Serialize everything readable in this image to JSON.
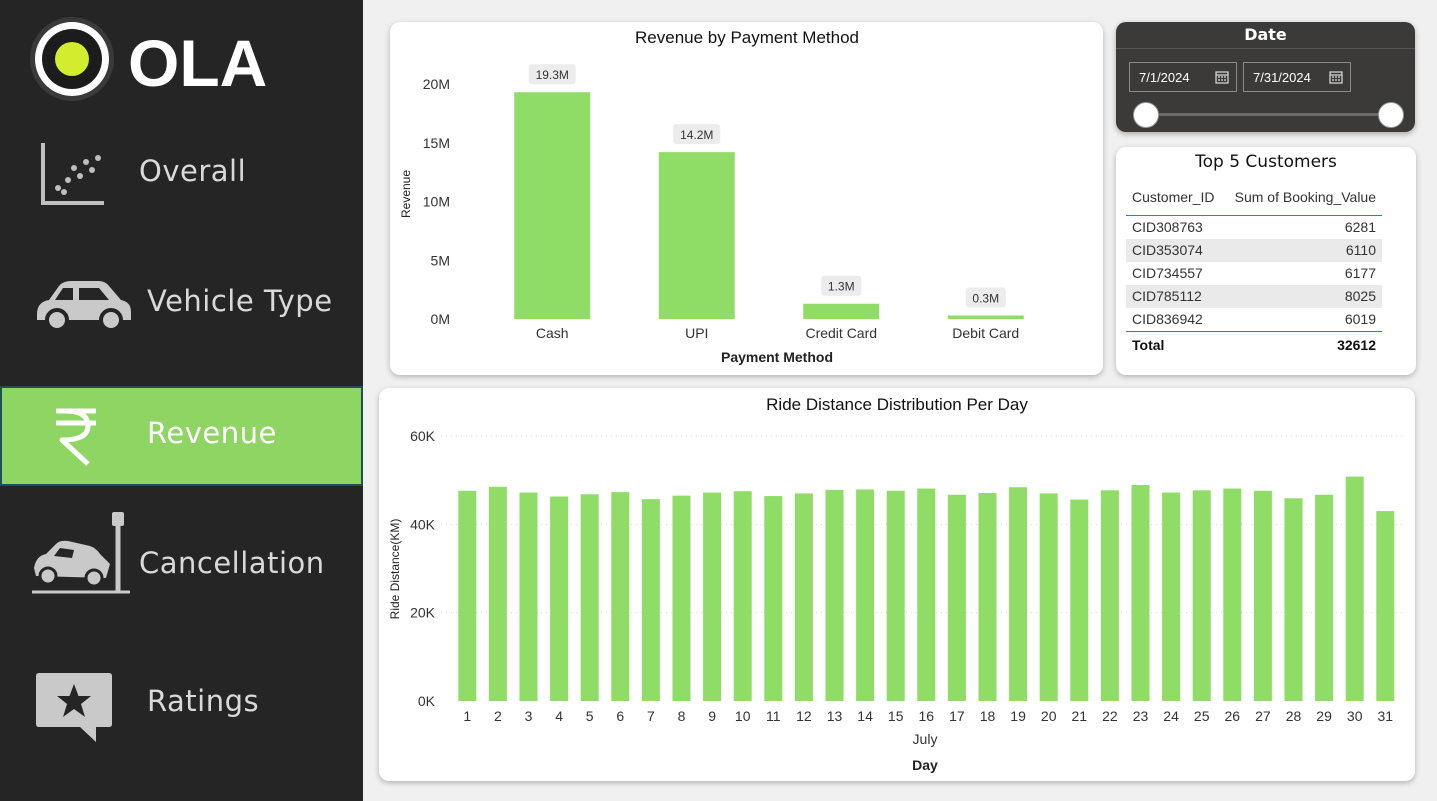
{
  "brand": {
    "name": "OLA"
  },
  "nav": [
    {
      "label": "Overall",
      "icon": "scatter-chart-icon",
      "active": false
    },
    {
      "label": "Vehicle Type",
      "icon": "car-icon",
      "active": false
    },
    {
      "label": "Revenue",
      "icon": "rupee-icon",
      "active": true
    },
    {
      "label": "Cancellation",
      "icon": "car-crash-icon",
      "active": false
    },
    {
      "label": "Ratings",
      "icon": "star-comment-icon",
      "active": false
    }
  ],
  "date_slicer": {
    "title": "Date",
    "start": "7/1/2024",
    "end": "7/31/2024"
  },
  "customers": {
    "title": "Top 5 Customers",
    "headers": [
      "Customer_ID",
      "Sum of Booking_Value"
    ],
    "rows": [
      [
        "CID308763",
        "6281"
      ],
      [
        "CID353074",
        "6110"
      ],
      [
        "CID734557",
        "6177"
      ],
      [
        "CID785112",
        "8025"
      ],
      [
        "CID836942",
        "6019"
      ]
    ],
    "total_label": "Total",
    "total_value": "32612"
  },
  "chart_data": [
    {
      "type": "bar",
      "title": "Revenue by Payment Method",
      "xlabel": "Payment Method",
      "ylabel": "Revenue",
      "categories": [
        "Cash",
        "UPI",
        "Credit Card",
        "Debit Card"
      ],
      "values": [
        19.3,
        14.2,
        1.3,
        0.3
      ],
      "data_labels": [
        "19.3M",
        "14.2M",
        "1.3M",
        "0.3M"
      ],
      "yticks": [
        "0M",
        "5M",
        "10M",
        "15M",
        "20M"
      ],
      "ylim": [
        0,
        20
      ],
      "color": "#8fdc66",
      "grid": false
    },
    {
      "type": "bar",
      "title": "Ride Distance Distribution Per Day",
      "xlabel": "Day",
      "x_group_label": "July",
      "ylabel": "Ride Distance(KM)",
      "categories": [
        "1",
        "2",
        "3",
        "4",
        "5",
        "6",
        "7",
        "8",
        "9",
        "10",
        "11",
        "12",
        "13",
        "14",
        "15",
        "16",
        "17",
        "18",
        "19",
        "20",
        "21",
        "22",
        "23",
        "24",
        "25",
        "26",
        "27",
        "28",
        "29",
        "30",
        "31"
      ],
      "values": [
        47600,
        48500,
        47200,
        46300,
        46800,
        47300,
        45700,
        46500,
        47200,
        47500,
        46400,
        47000,
        47800,
        47900,
        47600,
        48100,
        46700,
        47100,
        48400,
        47000,
        45600,
        47700,
        48900,
        47200,
        47700,
        48100,
        47600,
        45900,
        46700,
        50800,
        43000
      ],
      "yticks": [
        "0K",
        "20K",
        "40K",
        "60K"
      ],
      "ylim": [
        0,
        60000
      ],
      "color": "#8fdc66",
      "grid": true
    }
  ]
}
